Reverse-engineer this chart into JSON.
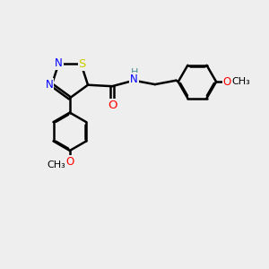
{
  "bg_color": "#eeeeee",
  "bond_color": "#000000",
  "bond_width": 1.8,
  "dbo": 0.055,
  "atom_colors": {
    "N": "#0000ff",
    "S": "#cccc00",
    "O": "#ff0000",
    "C": "#000000",
    "H": "#4a9090"
  },
  "font_size": 8.5,
  "figsize": [
    3.0,
    3.0
  ],
  "dpi": 100
}
